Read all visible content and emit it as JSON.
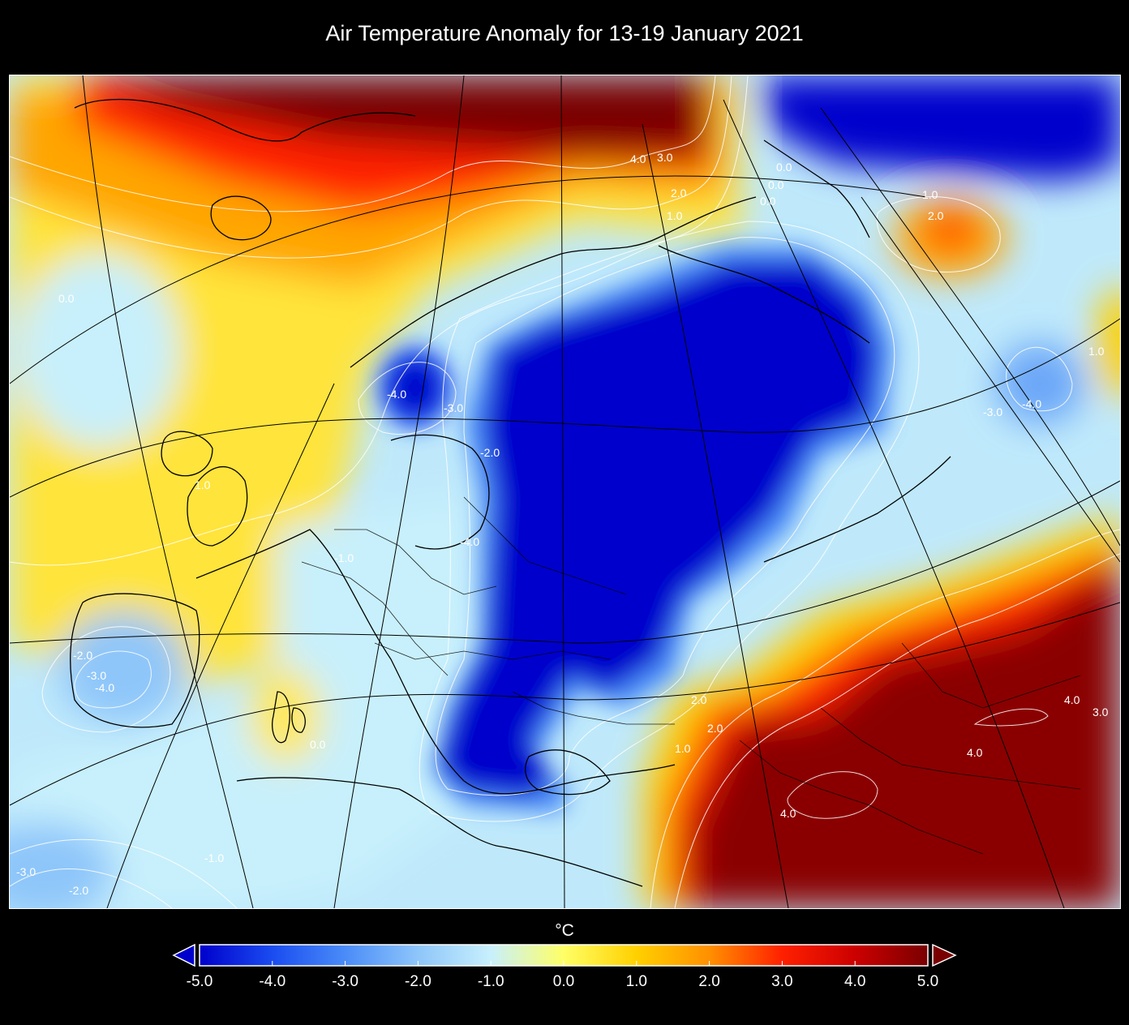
{
  "title": "Air Temperature Anomaly for 13-19 January 2021",
  "colorbar": {
    "unit": "°C",
    "min": -5.0,
    "max": 5.0,
    "ticks": [
      "-5.0",
      "-4.0",
      "-3.0",
      "-2.0",
      "-1.0",
      "0.0",
      "1.0",
      "2.0",
      "3.0",
      "4.0",
      "5.0"
    ],
    "colors": [
      "#0000cc",
      "#1a4cf0",
      "#4a8cf8",
      "#8ec6fa",
      "#c8f0fc",
      "#ffff66",
      "#ffd000",
      "#ff9000",
      "#ff2000",
      "#cc0000",
      "#7a0000"
    ],
    "under_color": "#0000cc",
    "over_color": "#7a0000"
  },
  "contour_labels": [
    "4.0",
    "3.0",
    "2.0",
    "1.0",
    "-4.0",
    "-3.0",
    "-2.0",
    "-4.0",
    "-1.0",
    "-2.0",
    "-3.0",
    "-4.0",
    "0.0",
    "1.0",
    "-3.0",
    "-2.0",
    "-1.0",
    "0.0",
    "1.0",
    "2.0",
    "-3.0",
    "-4.0",
    "1.0",
    "2.0",
    "4.0",
    "4.0",
    "4.0",
    "3.0",
    "1.0",
    "2.0",
    "0.0",
    "0.0",
    "0.0"
  ]
}
